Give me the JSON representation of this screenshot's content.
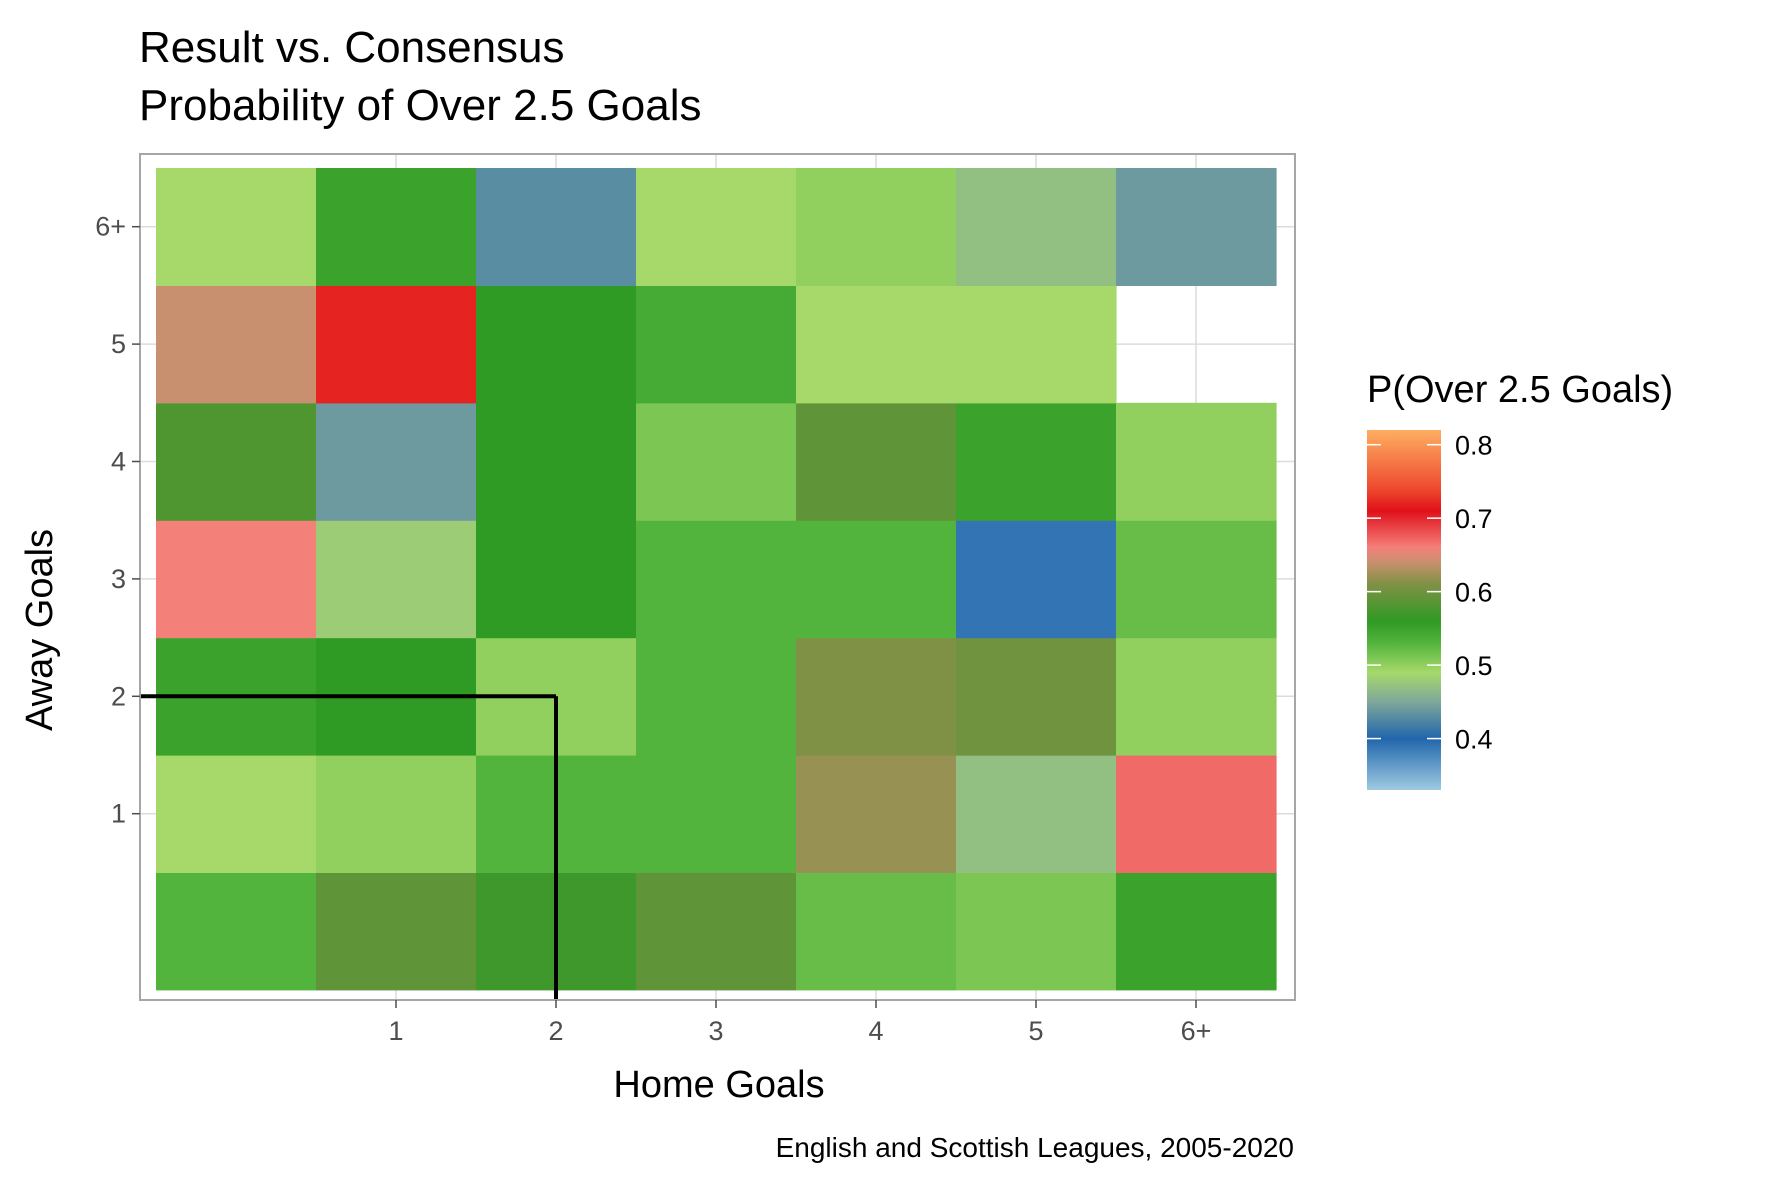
{
  "chart_data": {
    "type": "heatmap",
    "title": [
      "Result vs. Consensus",
      "Probability of Over 2.5 Goals"
    ],
    "xlabel": "Home Goals",
    "ylabel": "Away Goals",
    "caption": "English and Scottish Leagues, 2005-2020",
    "x_categories": [
      "0",
      "1",
      "2",
      "3",
      "4",
      "5",
      "6+"
    ],
    "y_categories": [
      "0",
      "1",
      "2",
      "3",
      "4",
      "5",
      "6+"
    ],
    "x_tick_labels": [
      "",
      "1",
      "2",
      "3",
      "4",
      "5",
      "6+"
    ],
    "y_tick_labels": [
      "",
      "1",
      "2",
      "3",
      "4",
      "5",
      "6+"
    ],
    "values": [
      [
        0.53,
        0.59,
        0.57,
        0.59,
        0.52,
        0.51,
        0.55
      ],
      [
        0.49,
        0.5,
        0.53,
        0.53,
        0.62,
        0.47,
        0.67
      ],
      [
        0.55,
        0.56,
        0.5,
        0.53,
        0.61,
        0.6,
        0.5
      ],
      [
        0.66,
        0.48,
        0.56,
        0.53,
        0.53,
        0.39,
        0.52
      ],
      [
        0.58,
        0.44,
        0.56,
        0.51,
        0.59,
        0.55,
        0.5
      ],
      [
        0.64,
        0.72,
        0.56,
        0.54,
        0.49,
        0.49,
        null
      ],
      [
        0.49,
        0.55,
        0.43,
        0.49,
        0.5,
        0.47,
        0.44
      ]
    ],
    "legend": {
      "title": "P(Over 2.5 Goals)",
      "ticks": [
        "0.8",
        "0.7",
        "0.6",
        "0.5",
        "0.4"
      ],
      "tick_values": [
        0.8,
        0.7,
        0.6,
        0.5,
        0.4
      ],
      "range": [
        0.33,
        0.82
      ],
      "stops": [
        {
          "v": 0.33,
          "color": "#9ecae1"
        },
        {
          "v": 0.4,
          "color": "#2166ac"
        },
        {
          "v": 0.45,
          "color": "#7fa79a"
        },
        {
          "v": 0.49,
          "color": "#a6d96a"
        },
        {
          "v": 0.53,
          "color": "#52b43d"
        },
        {
          "v": 0.56,
          "color": "#2f9a24"
        },
        {
          "v": 0.61,
          "color": "#7f9145"
        },
        {
          "v": 0.64,
          "color": "#c8906e"
        },
        {
          "v": 0.66,
          "color": "#f4807a"
        },
        {
          "v": 0.71,
          "color": "#e0101a"
        },
        {
          "v": 0.74,
          "color": "#ee4a30"
        },
        {
          "v": 0.82,
          "color": "#fdae61"
        }
      ]
    },
    "reference_lines": [
      {
        "x": 2.5,
        "y": 2.5,
        "description": "boundary of home ≤ 2 and away ≤ 2 region"
      }
    ],
    "grid": true,
    "legend_position": "right"
  }
}
